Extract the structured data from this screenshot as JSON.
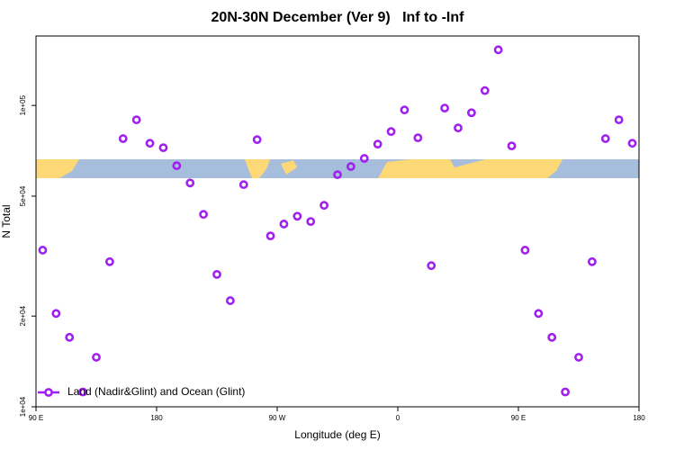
{
  "chart_data": {
    "type": "scatter",
    "title": "20N-30N December (Ver 9)   Inf to -Inf",
    "x_label": "Longitude (deg E)",
    "y_label": "N Total",
    "log_y": true,
    "legend_position": "bottom-left",
    "xlim": [
      90,
      540
    ],
    "xticks": [
      {
        "value": 90,
        "label": "90 E"
      },
      {
        "value": 180,
        "label": "180"
      },
      {
        "value": 270,
        "label": "90 W"
      },
      {
        "value": 360,
        "label": "0"
      },
      {
        "value": 450,
        "label": "90 E"
      },
      {
        "value": 540,
        "label": "180"
      }
    ],
    "ylim": [
      10000,
      170000
    ],
    "yticks": [
      {
        "value": 10000,
        "label": "1e+04"
      },
      {
        "value": 20000,
        "label": "2e+04"
      },
      {
        "value": 50000,
        "label": "5e+04"
      },
      {
        "value": 100000,
        "label": "1e+05"
      }
    ],
    "series": [
      {
        "name": "Land (Nadir&Glint) and Ocean (Glint)",
        "color": "#a020f0",
        "x": [
          95,
          105,
          115,
          125,
          135,
          145,
          155,
          165,
          175,
          185,
          195,
          205,
          215,
          225,
          235,
          245,
          255,
          265,
          275,
          285,
          295,
          305,
          315,
          325,
          335,
          345,
          355,
          365,
          375,
          385,
          395,
          405,
          415,
          425,
          435,
          445,
          455,
          465,
          475,
          485,
          495,
          505,
          515,
          525,
          535
        ],
        "values": [
          33100,
          20400,
          17000,
          11200,
          14600,
          30300,
          77600,
          89600,
          74900,
          72400,
          63100,
          55300,
          43500,
          27500,
          22500,
          54600,
          77000,
          36900,
          40400,
          42900,
          41200,
          46600,
          58900,
          62700,
          66700,
          74400,
          81900,
          96600,
          78100,
          29400,
          98000,
          84200,
          94600,
          112000,
          153000,
          73400,
          33100,
          20400,
          17000,
          11200,
          14600,
          30300,
          77600,
          89600,
          74900
        ]
      }
    ]
  }
}
